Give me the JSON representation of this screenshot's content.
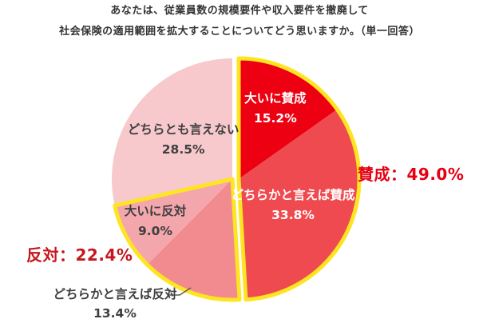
{
  "title": {
    "line1": "あなたは、従業員数の規模要件や収入要件を撤廃して",
    "line2": "社会保険の適用範囲を拡大することについてどう思いますか。（単一回答）"
  },
  "chart_data": {
    "type": "pie",
    "unit": "%",
    "direction": "clockwise",
    "start_angle": "12-oclock",
    "slices": [
      {
        "label": "大いに賛成",
        "value": 15.2,
        "display": "15.2%",
        "color": "#ec0011",
        "text_color": "#ffffff",
        "placement": "inside"
      },
      {
        "label": "どちらかと言えば賛成",
        "value": 33.8,
        "display": "33.8%",
        "color": "#ef4a50",
        "text_color": "#ffffff",
        "placement": "inside"
      },
      {
        "label": "どちらかと言えば反対",
        "value": 13.4,
        "display": "13.4%",
        "color": "#f28b90",
        "text_color": "#3f3f3f",
        "placement": "outside"
      },
      {
        "label": "大いに反対",
        "value": 9.0,
        "display": "9.0%",
        "color": "#f3a6ac",
        "text_color": "#3f3f3f",
        "placement": "inside"
      },
      {
        "label": "どちらとも言えない",
        "value": 28.5,
        "display": "28.5%",
        "color": "#f7c9cd",
        "text_color": "#3f3f3f",
        "placement": "inside"
      }
    ],
    "groups": [
      {
        "name": "賛成",
        "callout": "賛成：49.0%",
        "total": 49.0,
        "slices": [
          0,
          1
        ],
        "outline_color": "#ffe422",
        "text_color": "#e60012",
        "exploded": true
      },
      {
        "name": "反対",
        "callout": "反対：22.4%",
        "total": 22.4,
        "slices": [
          2,
          3
        ],
        "outline_color": "#ffe422",
        "text_color": "#c7161e",
        "exploded": false
      }
    ]
  }
}
